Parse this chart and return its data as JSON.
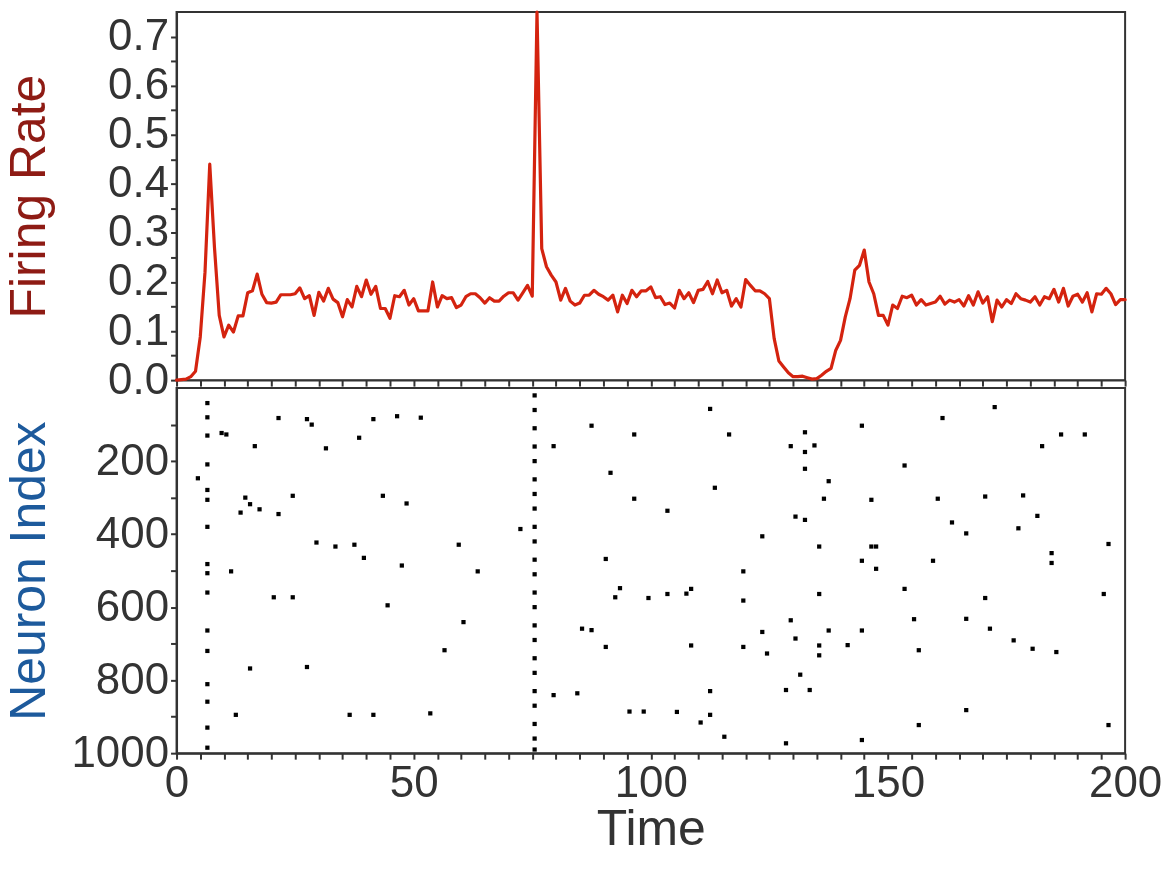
{
  "chart_data": [
    {
      "type": "line",
      "ylabel": "Firing Rate",
      "xlim": [
        0,
        200
      ],
      "ylim": [
        0,
        0.75
      ],
      "tick_labels": "y",
      "line_style": "solid",
      "xticks": [
        0,
        {
          "value": 5,
          "label": null
        },
        {
          "value": 10,
          "label": null
        },
        {
          "value": 15,
          "label": null
        },
        {
          "value": 20,
          "label": null
        },
        {
          "value": 25,
          "label": null
        },
        {
          "value": 30,
          "label": null
        },
        {
          "value": 35,
          "label": null
        },
        {
          "value": 40,
          "label": null
        },
        {
          "value": 45,
          "label": null
        },
        50,
        {
          "value": 55,
          "label": null
        },
        {
          "value": 60,
          "label": null
        },
        {
          "value": 65,
          "label": null
        },
        {
          "value": 70,
          "label": null
        },
        {
          "value": 75,
          "label": null
        },
        {
          "value": 80,
          "label": null
        },
        {
          "value": 85,
          "label": null
        },
        {
          "value": 90,
          "label": null
        },
        {
          "value": 95,
          "label": null
        },
        100,
        {
          "value": 105,
          "label": null
        },
        {
          "value": 110,
          "label": null
        },
        {
          "value": 115,
          "label": null
        },
        {
          "value": 120,
          "label": null
        },
        {
          "value": 125,
          "label": null
        },
        {
          "value": 130,
          "label": null
        },
        {
          "value": 135,
          "label": null
        },
        {
          "value": 140,
          "label": null
        },
        {
          "value": 145,
          "label": null
        },
        150,
        {
          "value": 155,
          "label": null
        },
        {
          "value": 160,
          "label": null
        },
        {
          "value": 165,
          "label": null
        },
        {
          "value": 170,
          "label": null
        },
        {
          "value": 175,
          "label": null
        },
        {
          "value": 180,
          "label": null
        },
        {
          "value": 185,
          "label": null
        },
        {
          "value": 190,
          "label": null
        },
        {
          "value": 195,
          "label": null
        },
        200
      ],
      "yticks": [
        {
          "value": 0,
          "label": "0.0"
        },
        {
          "value": 0.05,
          "label": null
        },
        0.1,
        {
          "value": 0.15,
          "label": null
        },
        0.2,
        {
          "value": 0.25,
          "label": null
        },
        0.3,
        {
          "value": 0.35,
          "label": null
        },
        0.4,
        {
          "value": 0.45,
          "label": null
        },
        0.5,
        {
          "value": 0.55,
          "label": null
        },
        0.6,
        {
          "value": 0.65,
          "label": null
        },
        0.7
      ],
      "x": [
        0,
        1,
        2,
        3,
        4,
        5,
        6,
        7,
        8,
        9,
        10,
        11,
        12,
        13,
        14,
        15,
        16,
        17,
        18,
        19,
        20,
        21,
        22,
        23,
        24,
        25,
        26,
        27,
        28,
        29,
        30,
        31,
        32,
        33,
        34,
        35,
        36,
        37,
        38,
        39,
        40,
        41,
        42,
        43,
        44,
        45,
        46,
        47,
        48,
        49,
        50,
        51,
        52,
        53,
        54,
        55,
        56,
        57,
        58,
        59,
        60,
        61,
        62,
        63,
        64,
        65,
        66,
        67,
        68,
        69,
        70,
        71,
        72,
        73,
        74,
        75,
        76,
        77,
        78,
        79,
        80,
        81,
        82,
        83,
        84,
        85,
        86,
        87,
        88,
        89,
        90,
        91,
        92,
        93,
        94,
        95,
        96,
        97,
        98,
        99,
        100,
        101,
        102,
        103,
        104,
        105,
        106,
        107,
        108,
        109,
        110,
        111,
        112,
        113,
        114,
        115,
        116,
        117,
        118,
        119,
        120,
        121,
        122,
        123,
        124,
        125,
        126,
        127,
        128,
        129,
        130,
        131,
        132,
        133,
        134,
        135,
        136,
        137,
        138,
        139,
        140,
        141,
        142,
        143,
        144,
        145,
        146,
        147,
        148,
        149,
        150,
        151,
        152,
        153,
        154,
        155,
        156,
        157,
        158,
        159,
        160,
        161,
        162,
        163,
        164,
        165,
        166,
        167,
        168,
        169,
        170,
        171,
        172,
        173,
        174,
        175,
        176,
        177,
        178,
        179,
        180,
        181,
        182,
        183,
        184,
        185,
        186,
        187,
        188,
        189,
        190,
        191,
        192,
        193,
        194,
        195,
        196,
        197,
        198,
        199,
        200
      ],
      "series": [
        {
          "color": "#d4230f",
          "values": [
            0,
            0.001,
            0.002,
            0.007,
            0.018,
            0.088,
            0.22,
            0.44,
            0.27,
            0.132,
            0.088,
            0.112,
            0.098,
            0.131,
            0.131,
            0.178,
            0.182,
            0.216,
            0.175,
            0.158,
            0.157,
            0.159,
            0.174,
            0.174,
            0.174,
            0.176,
            0.188,
            0.166,
            0.172,
            0.132,
            0.179,
            0.161,
            0.187,
            0.165,
            0.158,
            0.129,
            0.164,
            0.149,
            0.191,
            0.17,
            0.204,
            0.175,
            0.191,
            0.146,
            0.146,
            0.126,
            0.172,
            0.17,
            0.183,
            0.153,
            0.166,
            0.141,
            0.141,
            0.141,
            0.2,
            0.149,
            0.172,
            0.166,
            0.168,
            0.148,
            0.153,
            0.17,
            0.176,
            0.176,
            0.168,
            0.157,
            0.168,
            0.161,
            0.161,
            0.171,
            0.178,
            0.178,
            0.163,
            0.178,
            0.193,
            0.171,
            0.75,
            0.268,
            0.231,
            0.214,
            0.2,
            0.163,
            0.187,
            0.161,
            0.153,
            0.157,
            0.173,
            0.173,
            0.183,
            0.175,
            0.17,
            0.163,
            0.173,
            0.139,
            0.173,
            0.156,
            0.183,
            0.17,
            0.182,
            0.182,
            0.19,
            0.168,
            0.17,
            0.154,
            0.157,
            0.147,
            0.183,
            0.166,
            0.178,
            0.158,
            0.183,
            0.185,
            0.201,
            0.176,
            0.204,
            0.178,
            0.183,
            0.151,
            0.166,
            0.149,
            0.205,
            0.193,
            0.182,
            0.182,
            0.176,
            0.166,
            0.085,
            0.039,
            0.027,
            0.015,
            0.007,
            0.007,
            0.008,
            0.005,
            0.002,
            0.003,
            0.01,
            0.018,
            0.024,
            0.061,
            0.081,
            0.129,
            0.166,
            0.224,
            0.234,
            0.265,
            0.2,
            0.176,
            0.132,
            0.132,
            0.112,
            0.153,
            0.146,
            0.171,
            0.168,
            0.173,
            0.153,
            0.164,
            0.153,
            0.156,
            0.159,
            0.171,
            0.155,
            0.163,
            0.159,
            0.164,
            0.151,
            0.172,
            0.153,
            0.18,
            0.157,
            0.17,
            0.119,
            0.163,
            0.149,
            0.164,
            0.156,
            0.176,
            0.166,
            0.163,
            0.159,
            0.17,
            0.153,
            0.17,
            0.166,
            0.185,
            0.159,
            0.187,
            0.151,
            0.171,
            0.175,
            0.159,
            0.178,
            0.139,
            0.176,
            0.175,
            0.187,
            0.176,
            0.154,
            0.164,
            0.164
          ]
        }
      ]
    },
    {
      "type": "scatter",
      "xlabel": "Time",
      "ylabel": "Neuron Index",
      "xlim": [
        0,
        200
      ],
      "ylim": [
        1000,
        0
      ],
      "marker": "square",
      "xticks": [
        0,
        {
          "value": 5,
          "label": null
        },
        {
          "value": 10,
          "label": null
        },
        {
          "value": 15,
          "label": null
        },
        {
          "value": 20,
          "label": null
        },
        {
          "value": 25,
          "label": null
        },
        {
          "value": 30,
          "label": null
        },
        {
          "value": 35,
          "label": null
        },
        {
          "value": 40,
          "label": null
        },
        {
          "value": 45,
          "label": null
        },
        50,
        {
          "value": 55,
          "label": null
        },
        {
          "value": 60,
          "label": null
        },
        {
          "value": 65,
          "label": null
        },
        {
          "value": 70,
          "label": null
        },
        {
          "value": 75,
          "label": null
        },
        {
          "value": 80,
          "label": null
        },
        {
          "value": 85,
          "label": null
        },
        {
          "value": 90,
          "label": null
        },
        {
          "value": 95,
          "label": null
        },
        100,
        {
          "value": 105,
          "label": null
        },
        {
          "value": 110,
          "label": null
        },
        {
          "value": 115,
          "label": null
        },
        {
          "value": 120,
          "label": null
        },
        {
          "value": 125,
          "label": null
        },
        {
          "value": 130,
          "label": null
        },
        {
          "value": 135,
          "label": null
        },
        {
          "value": 140,
          "label": null
        },
        {
          "value": 145,
          "label": null
        },
        150,
        {
          "value": 155,
          "label": null
        },
        {
          "value": 160,
          "label": null
        },
        {
          "value": 165,
          "label": null
        },
        {
          "value": 170,
          "label": null
        },
        {
          "value": 175,
          "label": null
        },
        {
          "value": 180,
          "label": null
        },
        {
          "value": 185,
          "label": null
        },
        {
          "value": 190,
          "label": null
        },
        {
          "value": 195,
          "label": null
        },
        200
      ],
      "yticks": [
        {
          "value": 100,
          "label": null
        },
        200,
        {
          "value": 300,
          "label": null
        },
        400,
        {
          "value": 500,
          "label": null
        },
        600,
        {
          "value": 700,
          "label": null
        },
        800,
        {
          "value": 900,
          "label": null
        },
        1000
      ],
      "series": [
        {
          "color": "#000000",
          "x": [
            6.5,
            6.5,
            6.5,
            6.5,
            6.5,
            6.5,
            6.5,
            6.5,
            6.5,
            6.5,
            6.5,
            6.5,
            6.5,
            6.5,
            6.5,
            6.5,
            75.5,
            75.5,
            75.5,
            75.5,
            75.5,
            75.5,
            75.5,
            75.5,
            75.5,
            75.5,
            75.5,
            75.5,
            75.5,
            75.5,
            75.5,
            75.5,
            75.5,
            75.5,
            75.5,
            75.5,
            75.5,
            75.5,
            75.5,
            21.5,
            27.5,
            41.5,
            51.5,
            31.5,
            38.5,
            10.5,
            4.5,
            21.5,
            37.5,
            33.5,
            39.5,
            59.5,
            63.5,
            11.5,
            20.5,
            24.5,
            44.5,
            60.5,
            56.5,
            15.5,
            27.5,
            41.5,
            53.5,
            12.5,
            36.5,
            79.5,
            87.5,
            96.5,
            116.5,
            112.5,
            91.5,
            96.5,
            103.5,
            113.5,
            123.5,
            90.5,
            93.5,
            103.5,
            108.5,
            79.5,
            112.5,
            108.5,
            119.5,
            123.5,
            72.5,
            132.5,
            134.5,
            129.5,
            132.5,
            132.5,
            130.5,
            132.5,
            135.5,
            129.5,
            130.5,
            131.5,
            133.5,
            135.5,
            128.5,
            128.5,
            137.5,
            136.5,
            135.5,
            137.5,
            135.5,
            172.5,
            161.5,
            144.5,
            186.5,
            191.5,
            182.5,
            178.5,
            146.5,
            170.5,
            196.5,
            146.5,
            177.5,
            144.5,
            144.5,
            180.5,
            156.5,
            166.5,
            156.5,
            144.5,
            195.5,
            147.5,
            153.5,
            196.5,
            46.5,
            15.5,
            16.5,
            43.5,
            48.5,
            14.5,
            29.5,
            47.5,
            13.5,
            17.5,
            9.5,
            24.5,
            28.5,
            99.5,
            92.5,
            84.5,
            115.5,
            119.5,
            95.5,
            105.5,
            110.5,
            98.5,
            85.5,
            87.5,
            90.5,
            119.5,
            107.5,
            124.5,
            112.5,
            166.5,
            163.5,
            160.5,
            147.5,
            159.5,
            184.5,
            184.5,
            153.5,
            170.5,
            185.5,
            181.5,
            171.5,
            176.5,
            166.5,
            155.5,
            141.5
          ],
          "values": [
            41,
            80,
            130,
            209,
            279,
            306,
            380,
            482,
            507,
            560,
            664,
            720,
            811,
            859,
            930,
            985,
            20,
            60,
            110,
            160,
            200,
            250,
            290,
            330,
            380,
            420,
            470,
            510,
            560,
            600,
            650,
            690,
            740,
            780,
            830,
            870,
            920,
            960,
            990,
            82,
            85,
            85,
            81,
            165,
            136,
            127,
            247,
            345,
            429,
            434,
            465,
            429,
            502,
            502,
            573,
            573,
            595,
            641,
            718,
            768,
            764,
            895,
            891,
            895,
            895,
            159,
            103,
            127,
            127,
            57,
            232,
            303,
            336,
            273,
            406,
            468,
            548,
            564,
            550,
            841,
            895,
            705,
            709,
            668,
            386,
            121,
            157,
            159,
            175,
            221,
            352,
            361,
            564,
            636,
            686,
            785,
            827,
            732,
            827,
            973,
            255,
            303,
            434,
            664,
            705,
            52,
            82,
            103,
            127,
            127,
            159,
            294,
            306,
            297,
            427,
            434,
            384,
            473,
            664,
            714,
            718,
            882,
            923,
            964,
            564,
            495,
            212,
            923,
            77,
            318,
            159,
            295,
            316,
            300,
            423,
            486,
            341,
            332,
            123,
            295,
            100,
            575,
            573,
            836,
            955,
            502,
            886,
            887,
            916,
            886,
            659,
            663,
            709,
            582,
            563,
            727,
            830,
            398,
            368,
            303,
            434,
            473,
            452,
            479,
            550,
            575,
            723,
            350,
            659,
            691,
            632,
            633,
            704
          ]
        }
      ]
    }
  ]
}
